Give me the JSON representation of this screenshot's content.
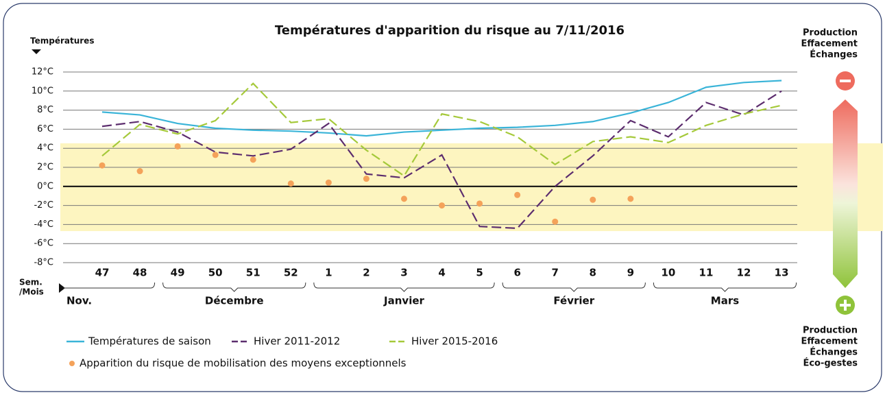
{
  "chart_data": {
    "type": "line",
    "title": "Températures d'apparition du risque au 7/11/2016",
    "y_label": "Températures",
    "x_label": [
      "Sem.",
      "/Mois"
    ],
    "categories": [
      "47",
      "48",
      "49",
      "50",
      "51",
      "52",
      "1",
      "2",
      "3",
      "4",
      "5",
      "6",
      "7",
      "8",
      "9",
      "10",
      "11",
      "12",
      "13"
    ],
    "months": [
      {
        "label": "Nov.",
        "span": 2
      },
      {
        "label": "Décembre",
        "span": 4
      },
      {
        "label": "Janvier",
        "span": 5
      },
      {
        "label": "Février",
        "span": 4
      },
      {
        "label": "Mars",
        "span": 4
      }
    ],
    "ylim": [
      -8,
      12
    ],
    "yticks": [
      {
        "value": 12,
        "label": "12°C"
      },
      {
        "value": 10,
        "label": "10°C"
      },
      {
        "value": 8,
        "label": "8°C"
      },
      {
        "value": 6,
        "label": "6°C"
      },
      {
        "value": 4,
        "label": "4°C"
      },
      {
        "value": 2,
        "label": "2°C"
      },
      {
        "value": 0,
        "label": "0°C"
      },
      {
        "value": -2,
        "label": "-2°C"
      },
      {
        "value": -4,
        "label": "-4°C"
      },
      {
        "value": -6,
        "label": "-6°C"
      },
      {
        "value": -8,
        "label": "-8°C"
      }
    ],
    "grid": true,
    "series": [
      {
        "name": "Températures de saison",
        "color": "#3ab4d8",
        "dashed": false,
        "values": [
          7.8,
          7.5,
          6.6,
          6.1,
          5.9,
          5.8,
          5.6,
          5.3,
          5.7,
          5.9,
          6.1,
          6.2,
          6.4,
          6.8,
          7.7,
          8.8,
          10.4,
          10.9,
          11.1
        ]
      },
      {
        "name": "Hiver 2011-2012",
        "color": "#5c2d6e",
        "dashed": true,
        "values": [
          6.3,
          6.8,
          5.7,
          3.6,
          3.2,
          3.9,
          6.6,
          1.3,
          0.9,
          3.3,
          -4.2,
          -4.4,
          0.0,
          3.2,
          6.9,
          5.2,
          8.8,
          7.5,
          10.0
        ]
      },
      {
        "name": "Hiver 2015-2016",
        "color": "#a5c93a",
        "dashed": true,
        "values": [
          3.2,
          6.5,
          5.5,
          6.9,
          10.8,
          6.7,
          7.1,
          3.8,
          1.1,
          7.6,
          6.8,
          5.2,
          2.3,
          4.7,
          5.2,
          4.6,
          6.4,
          7.6,
          8.5
        ]
      }
    ],
    "points": {
      "name": "Apparition du risque de mobilisation des moyens exceptionnels",
      "color": "#f4a25a",
      "values": [
        2.2,
        1.6,
        4.2,
        3.3,
        2.8,
        0.3,
        0.4,
        0.8,
        -1.3,
        -2.0,
        -1.8,
        -0.9,
        -3.7,
        -1.4,
        -1.3,
        null,
        null,
        null,
        null
      ]
    },
    "right_panel": {
      "top": [
        "Production",
        "Effacement",
        "Échanges"
      ],
      "bottom": [
        "Production",
        "Effacement",
        "Échanges",
        "Éco-gestes"
      ]
    }
  }
}
